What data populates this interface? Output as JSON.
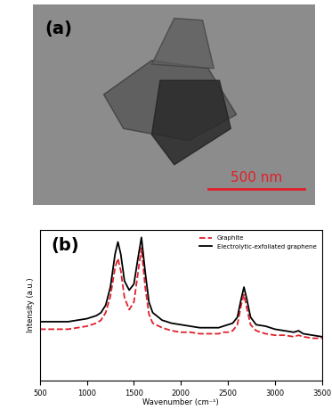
{
  "chart_data": [
    {
      "type": "image",
      "panel_label": "(a)",
      "scale_bar": "500 nm"
    },
    {
      "type": "line",
      "panel_label": "(b)",
      "x_label": "Wavenumber (cm⁻¹)",
      "y_label": "Intensity (a.u.)",
      "x": [
        500,
        600,
        700,
        800,
        900,
        1000,
        1100,
        1150,
        1200,
        1250,
        1300,
        1330,
        1360,
        1400,
        1450,
        1500,
        1540,
        1580,
        1620,
        1660,
        1700,
        1800,
        1900,
        2000,
        2100,
        2200,
        2300,
        2400,
        2450,
        2500,
        2550,
        2600,
        2640,
        2670,
        2700,
        2740,
        2800,
        2900,
        3000,
        3100,
        3200,
        3250,
        3300,
        3400,
        3500
      ],
      "series": [
        {
          "name": "Graphite",
          "color": "#e0202a",
          "line_style": "dashed",
          "values": [
            34,
            34,
            34,
            34,
            35,
            36,
            38,
            40,
            45,
            56,
            75,
            81,
            73,
            55,
            47,
            52,
            70,
            88,
            62,
            44,
            38,
            35,
            33,
            32,
            32,
            31,
            31,
            31,
            32,
            32,
            33,
            37,
            50,
            57,
            48,
            37,
            33,
            31,
            30,
            30,
            29,
            30,
            29,
            28,
            28
          ]
        },
        {
          "name": "Electrolytic-exfoliated graphene",
          "color": "#000000",
          "line_style": "solid",
          "values": [
            39,
            39,
            39,
            39,
            40,
            41,
            43,
            45,
            50,
            62,
            84,
            92,
            84,
            66,
            60,
            64,
            80,
            95,
            72,
            52,
            45,
            40,
            38,
            37,
            36,
            35,
            35,
            35,
            36,
            37,
            38,
            42,
            54,
            62,
            54,
            42,
            37,
            36,
            34,
            33,
            32,
            33,
            31,
            30,
            29
          ]
        }
      ],
      "xlim": [
        500,
        3500
      ],
      "xticks": [
        500,
        1000,
        1500,
        2000,
        2500,
        3000,
        3500
      ],
      "ylim": [
        0,
        100
      ],
      "tick_labels": "x",
      "legend": "upper right"
    }
  ]
}
